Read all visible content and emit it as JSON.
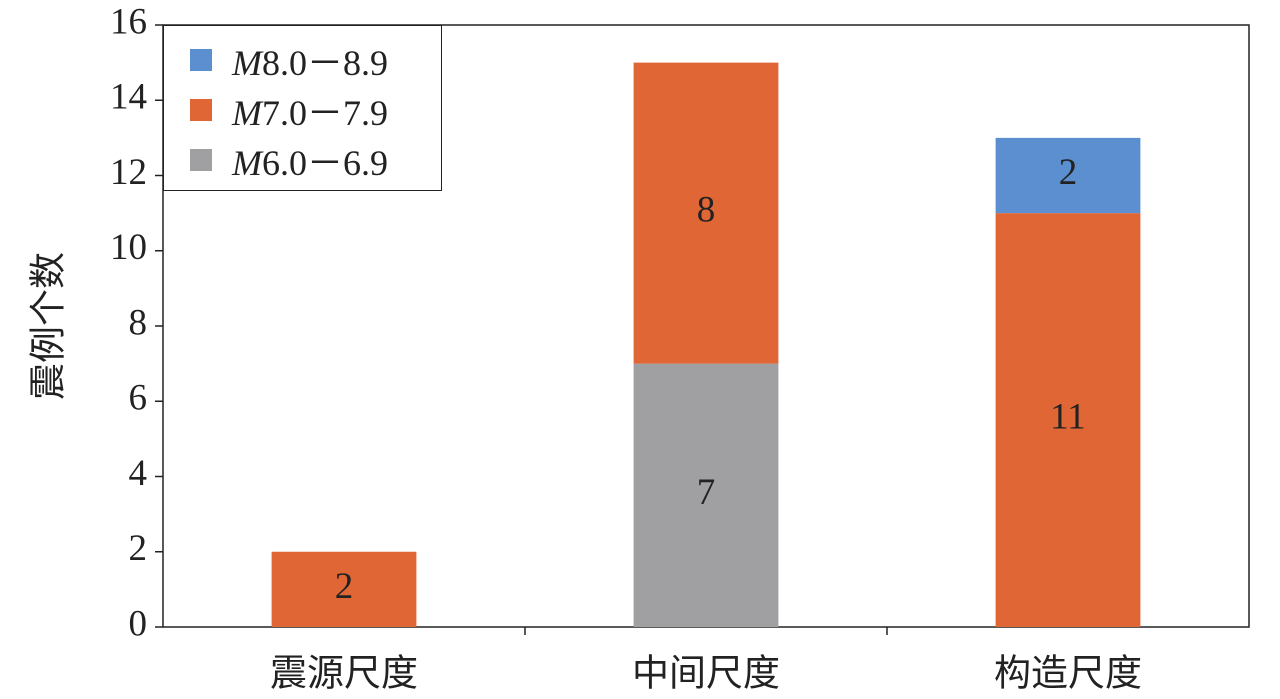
{
  "chart_data": {
    "type": "stacked_bar",
    "y_label": "震例个数",
    "categories": [
      "震源尺度",
      "中间尺度",
      "构造尺度"
    ],
    "series": [
      {
        "name": "M8.0－8.9",
        "color": "#5b8fcf",
        "values": [
          null,
          null,
          2
        ]
      },
      {
        "name": "M7.0－7.9",
        "color": "#e06735",
        "values": [
          2,
          8,
          11
        ]
      },
      {
        "name": "M6.0－6.9",
        "color": "#a0a0a3",
        "values": [
          null,
          7,
          null
        ]
      }
    ],
    "ylim": [
      0,
      16
    ],
    "yticks": [
      0,
      2,
      4,
      6,
      8,
      10,
      12,
      14,
      16
    ],
    "legend": "upper left",
    "grid": false
  }
}
